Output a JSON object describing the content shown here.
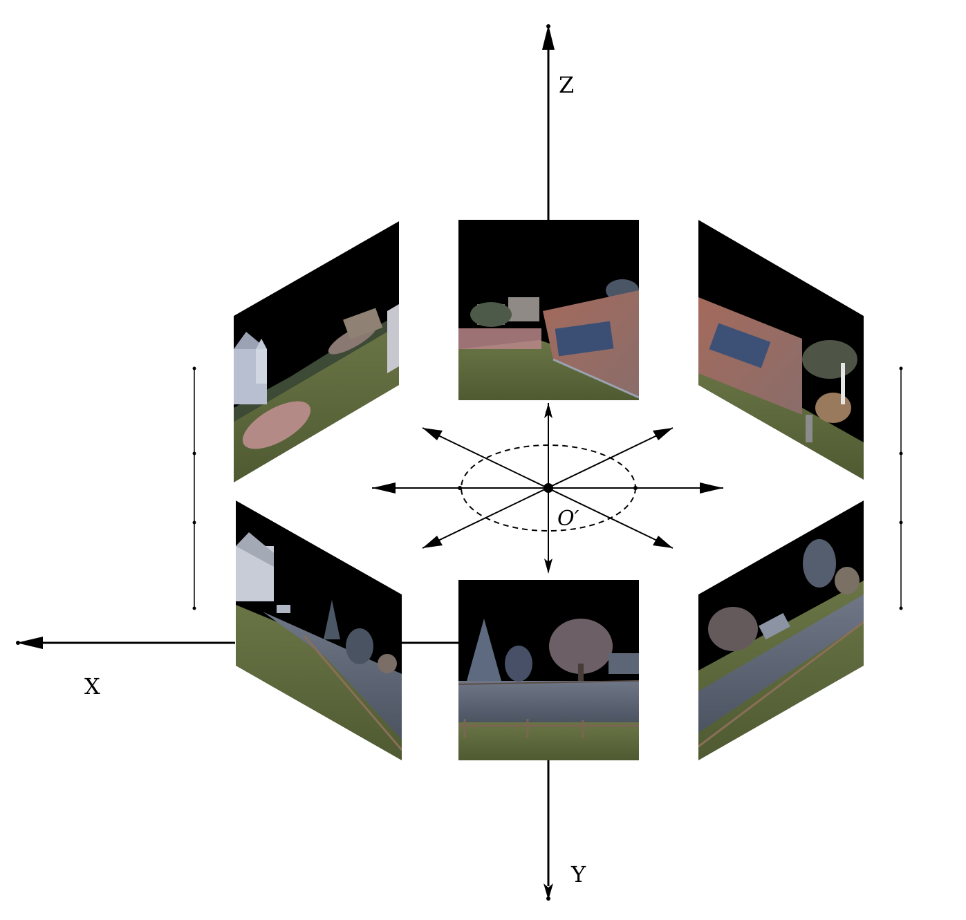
{
  "axes": {
    "z_label": "Z",
    "x_label": "X",
    "y_label": "Y"
  },
  "origin": {
    "label": "O′"
  },
  "panels": [
    {
      "name": "top-left",
      "sky": "#000000",
      "ground": "#5c6a38",
      "accent": "#a78a7c"
    },
    {
      "name": "top-center",
      "sky": "#000000",
      "ground": "#5f6d3c",
      "accent": "#a06a5c"
    },
    {
      "name": "top-right",
      "sky": "#000000",
      "ground": "#5b6b3a",
      "accent": "#9a6e62"
    },
    {
      "name": "bottom-left",
      "sky": "#000000",
      "ground": "#5d6b3d",
      "accent": "#7c8696"
    },
    {
      "name": "bottom-center",
      "sky": "#000000",
      "ground": "#5e6a3e",
      "accent": "#7a808e"
    },
    {
      "name": "bottom-right",
      "sky": "#000000",
      "ground": "#5c6a3a",
      "accent": "#7d8595"
    }
  ]
}
